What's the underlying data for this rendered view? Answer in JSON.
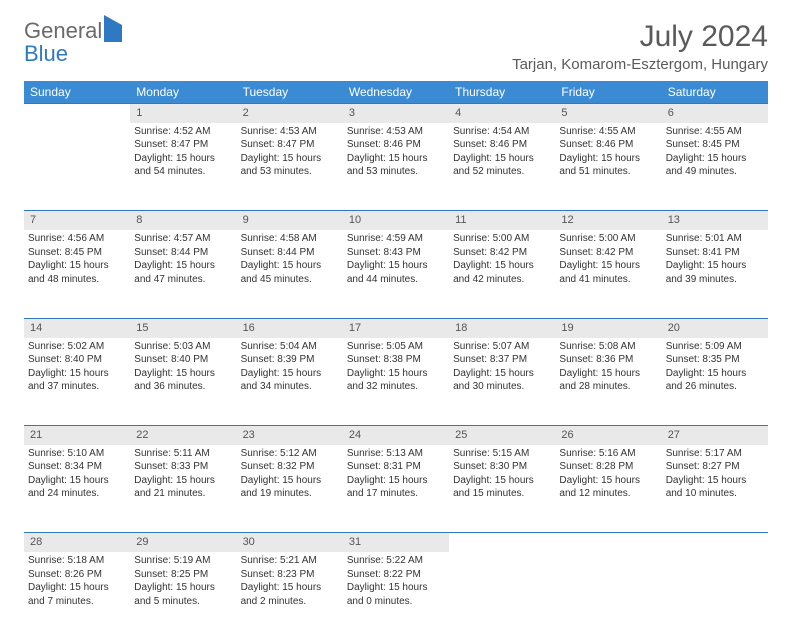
{
  "logo": {
    "general": "General",
    "blue": "Blue"
  },
  "title": "July 2024",
  "location": "Tarjan, Komarom-Esztergom, Hungary",
  "day_headers": [
    "Sunday",
    "Monday",
    "Tuesday",
    "Wednesday",
    "Thursday",
    "Friday",
    "Saturday"
  ],
  "colors": {
    "header_bg": "#3b8bd4",
    "header_text": "#ffffff",
    "daynum_bg": "#e9e9e9",
    "border": "#2f78c2",
    "logo_gray": "#6a6a6a",
    "logo_blue": "#2f78c2",
    "title_color": "#5a5a5a",
    "body_text": "#333333",
    "background": "#ffffff"
  },
  "typography": {
    "month_title_fontsize": 30,
    "location_fontsize": 15,
    "header_fontsize": 12,
    "daynum_fontsize": 11,
    "cell_fontsize": 10
  },
  "weeks": [
    {
      "nums": [
        "",
        "1",
        "2",
        "3",
        "4",
        "5",
        "6"
      ],
      "cells": [
        null,
        {
          "sunrise": "Sunrise: 4:52 AM",
          "sunset": "Sunset: 8:47 PM",
          "dl1": "Daylight: 15 hours",
          "dl2": "and 54 minutes."
        },
        {
          "sunrise": "Sunrise: 4:53 AM",
          "sunset": "Sunset: 8:47 PM",
          "dl1": "Daylight: 15 hours",
          "dl2": "and 53 minutes."
        },
        {
          "sunrise": "Sunrise: 4:53 AM",
          "sunset": "Sunset: 8:46 PM",
          "dl1": "Daylight: 15 hours",
          "dl2": "and 53 minutes."
        },
        {
          "sunrise": "Sunrise: 4:54 AM",
          "sunset": "Sunset: 8:46 PM",
          "dl1": "Daylight: 15 hours",
          "dl2": "and 52 minutes."
        },
        {
          "sunrise": "Sunrise: 4:55 AM",
          "sunset": "Sunset: 8:46 PM",
          "dl1": "Daylight: 15 hours",
          "dl2": "and 51 minutes."
        },
        {
          "sunrise": "Sunrise: 4:55 AM",
          "sunset": "Sunset: 8:45 PM",
          "dl1": "Daylight: 15 hours",
          "dl2": "and 49 minutes."
        }
      ]
    },
    {
      "nums": [
        "7",
        "8",
        "9",
        "10",
        "11",
        "12",
        "13"
      ],
      "cells": [
        {
          "sunrise": "Sunrise: 4:56 AM",
          "sunset": "Sunset: 8:45 PM",
          "dl1": "Daylight: 15 hours",
          "dl2": "and 48 minutes."
        },
        {
          "sunrise": "Sunrise: 4:57 AM",
          "sunset": "Sunset: 8:44 PM",
          "dl1": "Daylight: 15 hours",
          "dl2": "and 47 minutes."
        },
        {
          "sunrise": "Sunrise: 4:58 AM",
          "sunset": "Sunset: 8:44 PM",
          "dl1": "Daylight: 15 hours",
          "dl2": "and 45 minutes."
        },
        {
          "sunrise": "Sunrise: 4:59 AM",
          "sunset": "Sunset: 8:43 PM",
          "dl1": "Daylight: 15 hours",
          "dl2": "and 44 minutes."
        },
        {
          "sunrise": "Sunrise: 5:00 AM",
          "sunset": "Sunset: 8:42 PM",
          "dl1": "Daylight: 15 hours",
          "dl2": "and 42 minutes."
        },
        {
          "sunrise": "Sunrise: 5:00 AM",
          "sunset": "Sunset: 8:42 PM",
          "dl1": "Daylight: 15 hours",
          "dl2": "and 41 minutes."
        },
        {
          "sunrise": "Sunrise: 5:01 AM",
          "sunset": "Sunset: 8:41 PM",
          "dl1": "Daylight: 15 hours",
          "dl2": "and 39 minutes."
        }
      ]
    },
    {
      "nums": [
        "14",
        "15",
        "16",
        "17",
        "18",
        "19",
        "20"
      ],
      "cells": [
        {
          "sunrise": "Sunrise: 5:02 AM",
          "sunset": "Sunset: 8:40 PM",
          "dl1": "Daylight: 15 hours",
          "dl2": "and 37 minutes."
        },
        {
          "sunrise": "Sunrise: 5:03 AM",
          "sunset": "Sunset: 8:40 PM",
          "dl1": "Daylight: 15 hours",
          "dl2": "and 36 minutes."
        },
        {
          "sunrise": "Sunrise: 5:04 AM",
          "sunset": "Sunset: 8:39 PM",
          "dl1": "Daylight: 15 hours",
          "dl2": "and 34 minutes."
        },
        {
          "sunrise": "Sunrise: 5:05 AM",
          "sunset": "Sunset: 8:38 PM",
          "dl1": "Daylight: 15 hours",
          "dl2": "and 32 minutes."
        },
        {
          "sunrise": "Sunrise: 5:07 AM",
          "sunset": "Sunset: 8:37 PM",
          "dl1": "Daylight: 15 hours",
          "dl2": "and 30 minutes."
        },
        {
          "sunrise": "Sunrise: 5:08 AM",
          "sunset": "Sunset: 8:36 PM",
          "dl1": "Daylight: 15 hours",
          "dl2": "and 28 minutes."
        },
        {
          "sunrise": "Sunrise: 5:09 AM",
          "sunset": "Sunset: 8:35 PM",
          "dl1": "Daylight: 15 hours",
          "dl2": "and 26 minutes."
        }
      ]
    },
    {
      "nums": [
        "21",
        "22",
        "23",
        "24",
        "25",
        "26",
        "27"
      ],
      "cells": [
        {
          "sunrise": "Sunrise: 5:10 AM",
          "sunset": "Sunset: 8:34 PM",
          "dl1": "Daylight: 15 hours",
          "dl2": "and 24 minutes."
        },
        {
          "sunrise": "Sunrise: 5:11 AM",
          "sunset": "Sunset: 8:33 PM",
          "dl1": "Daylight: 15 hours",
          "dl2": "and 21 minutes."
        },
        {
          "sunrise": "Sunrise: 5:12 AM",
          "sunset": "Sunset: 8:32 PM",
          "dl1": "Daylight: 15 hours",
          "dl2": "and 19 minutes."
        },
        {
          "sunrise": "Sunrise: 5:13 AM",
          "sunset": "Sunset: 8:31 PM",
          "dl1": "Daylight: 15 hours",
          "dl2": "and 17 minutes."
        },
        {
          "sunrise": "Sunrise: 5:15 AM",
          "sunset": "Sunset: 8:30 PM",
          "dl1": "Daylight: 15 hours",
          "dl2": "and 15 minutes."
        },
        {
          "sunrise": "Sunrise: 5:16 AM",
          "sunset": "Sunset: 8:28 PM",
          "dl1": "Daylight: 15 hours",
          "dl2": "and 12 minutes."
        },
        {
          "sunrise": "Sunrise: 5:17 AM",
          "sunset": "Sunset: 8:27 PM",
          "dl1": "Daylight: 15 hours",
          "dl2": "and 10 minutes."
        }
      ]
    },
    {
      "nums": [
        "28",
        "29",
        "30",
        "31",
        "",
        "",
        ""
      ],
      "cells": [
        {
          "sunrise": "Sunrise: 5:18 AM",
          "sunset": "Sunset: 8:26 PM",
          "dl1": "Daylight: 15 hours",
          "dl2": "and 7 minutes."
        },
        {
          "sunrise": "Sunrise: 5:19 AM",
          "sunset": "Sunset: 8:25 PM",
          "dl1": "Daylight: 15 hours",
          "dl2": "and 5 minutes."
        },
        {
          "sunrise": "Sunrise: 5:21 AM",
          "sunset": "Sunset: 8:23 PM",
          "dl1": "Daylight: 15 hours",
          "dl2": "and 2 minutes."
        },
        {
          "sunrise": "Sunrise: 5:22 AM",
          "sunset": "Sunset: 8:22 PM",
          "dl1": "Daylight: 15 hours",
          "dl2": "and 0 minutes."
        },
        null,
        null,
        null
      ]
    }
  ]
}
